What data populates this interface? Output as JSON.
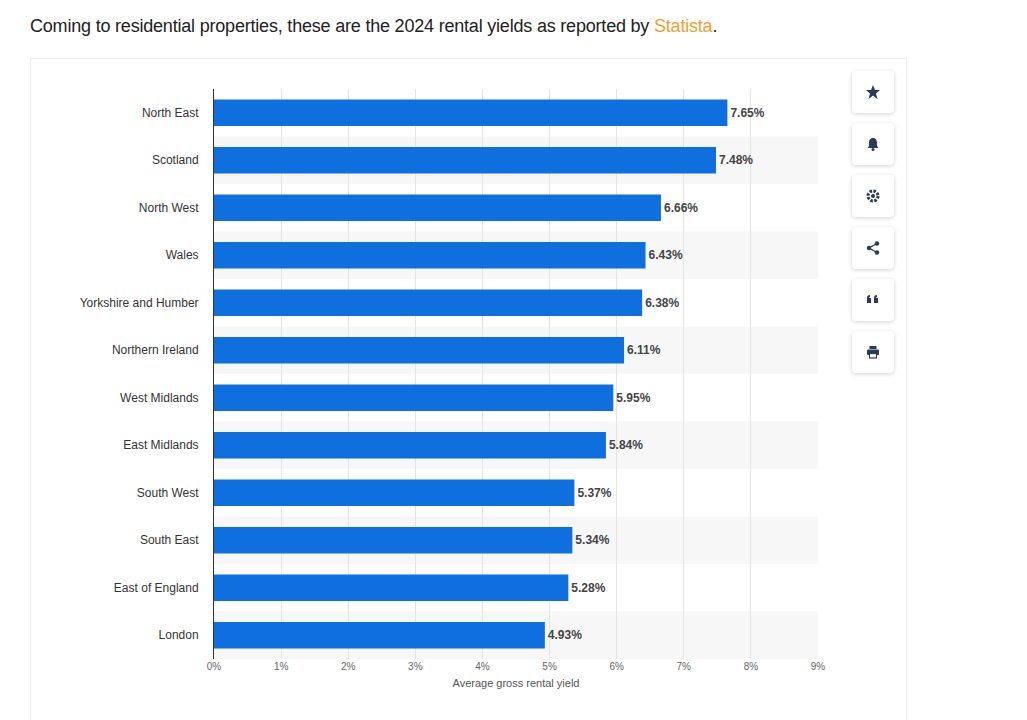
{
  "page": {
    "intro": "Coming to residential properties, these are the 2024 rental yields as reported by ",
    "link": "Statista",
    "end": "."
  },
  "chart_data": {
    "type": "bar",
    "orientation": "horizontal",
    "categories": [
      "North East",
      "Scotland",
      "North West",
      "Wales",
      "Yorkshire and Humber",
      "Northern Ireland",
      "West Midlands",
      "East Midlands",
      "South West",
      "South East",
      "East of England",
      "London"
    ],
    "values": [
      7.65,
      7.48,
      6.66,
      6.43,
      6.38,
      6.11,
      5.95,
      5.84,
      5.37,
      5.34,
      5.28,
      4.93
    ],
    "value_labels": [
      "7.65%",
      "7.48%",
      "6.66%",
      "6.43%",
      "6.38%",
      "6.11%",
      "5.95%",
      "5.84%",
      "5.37%",
      "5.34%",
      "5.28%",
      "4.93%"
    ],
    "data_labels": true,
    "color": "#0f6fde",
    "x_label": "Average gross rental yield",
    "xlim": [
      0,
      9
    ],
    "xticks": [
      {
        "value": 0,
        "label": "0%"
      },
      {
        "value": 1,
        "label": "1%"
      },
      {
        "value": 2,
        "label": "2%"
      },
      {
        "value": 3,
        "label": "3%"
      },
      {
        "value": 4,
        "label": "4%"
      },
      {
        "value": 5,
        "label": "5%"
      },
      {
        "value": 6,
        "label": "6%"
      },
      {
        "value": 7,
        "label": "7%"
      },
      {
        "value": 8,
        "label": "8%"
      },
      {
        "value": 9,
        "label": "9%"
      }
    ],
    "grid": true
  }
}
